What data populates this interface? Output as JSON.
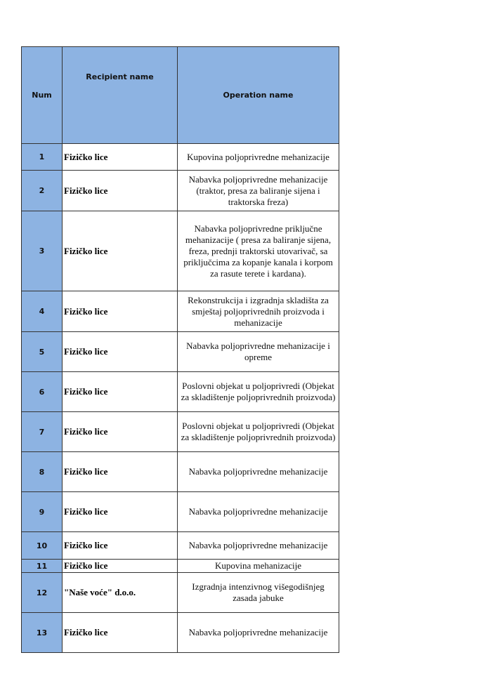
{
  "header": {
    "num": "Num",
    "recipient": "Recipient name",
    "operation": "Operation name"
  },
  "colors": {
    "header_bg": "#8db3e2",
    "border": "#333333"
  },
  "rows": [
    {
      "num": "1",
      "recipient": "Fizičko lice",
      "operation": "Kupovina poljoprivredne mehanizacije"
    },
    {
      "num": "2",
      "recipient": "Fizičko lice",
      "operation": "Nabavka poljoprivredne mehanizacije (traktor, presa za baliranje sijena i traktorska freza)"
    },
    {
      "num": "3",
      "recipient": "Fizičko lice",
      "operation": "Nabavka poljoprivredne priključne mehanizacije ( presa za baliranje sijena, freza, prednji traktorski utovarivač, sa priključcima za kopanje kanala i korpom za rasute terete i kardana)."
    },
    {
      "num": "4",
      "recipient": "Fizičko lice",
      "operation": "Rekonstrukcija i izgradnja skladišta za smještaj poljoprivrednih proizvoda i mehanizacije"
    },
    {
      "num": "5",
      "recipient": "Fizičko lice",
      "operation": "Nabavka poljoprivredne mehanizacije i opreme"
    },
    {
      "num": "6",
      "recipient": "Fizičko lice",
      "operation": "Poslovni objekat u poljoprivredi (Objekat za skladištenje poljoprivrednih proizvoda)"
    },
    {
      "num": "7",
      "recipient": "Fizičko lice",
      "operation": "Poslovni objekat u poljoprivredi (Objekat za skladištenje poljoprivrednih proizvoda)"
    },
    {
      "num": "8",
      "recipient": "Fizičko lice",
      "operation": "Nabavka poljoprivredne mehanizacije"
    },
    {
      "num": "9",
      "recipient": "Fizičko lice",
      "operation": "Nabavka poljoprivredne mehanizacije"
    },
    {
      "num": "10",
      "recipient": "Fizičko lice",
      "operation": "Nabavka poljoprivredne mehanizacije"
    },
    {
      "num": "11",
      "recipient": "Fizičko lice",
      "operation": "Kupovina mehanizacije"
    },
    {
      "num": "12",
      "recipient": "\"Naše voće\" d.o.o.",
      "operation": "Izgradnja intenzivnog višegodišnjeg zasada jabuke"
    },
    {
      "num": "13",
      "recipient": "Fizičko lice",
      "operation": "Nabavka poljoprivredne mehanizacije"
    }
  ]
}
